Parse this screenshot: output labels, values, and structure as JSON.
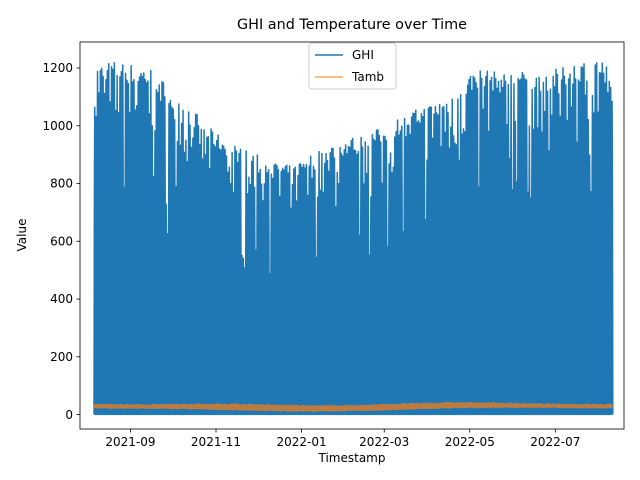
{
  "chart_data": {
    "type": "line",
    "title": "GHI and Temperature over Time",
    "xlabel": "Timestamp",
    "ylabel": "Value",
    "x_range": [
      "2021-08-06",
      "2022-08-10"
    ],
    "xlim": [
      "2021-07-27",
      "2022-08-19"
    ],
    "ylim": [
      -50,
      1290
    ],
    "x_ticks": [
      "2021-09",
      "2021-11",
      "2022-01",
      "2022-03",
      "2022-05",
      "2022-07"
    ],
    "y_ticks": [
      0,
      200,
      400,
      600,
      800,
      1000,
      1200
    ],
    "grid": false,
    "legend_position": "top-center",
    "series": [
      {
        "name": "GHI",
        "color": "#1f77b4",
        "daily_peak_envelope": {
          "x": [
            "2021-08-06",
            "2021-08-15",
            "2021-08-25",
            "2021-09-05",
            "2021-09-15",
            "2021-09-25",
            "2021-10-05",
            "2021-10-15",
            "2021-10-25",
            "2021-11-05",
            "2021-11-15",
            "2021-11-25",
            "2021-12-05",
            "2021-12-15",
            "2021-12-25",
            "2022-01-05",
            "2022-01-15",
            "2022-01-25",
            "2022-02-05",
            "2022-02-15",
            "2022-02-25",
            "2022-03-05",
            "2022-03-15",
            "2022-03-25",
            "2022-04-05",
            "2022-04-15",
            "2022-04-25",
            "2022-05-05",
            "2022-05-15",
            "2022-05-25",
            "2022-06-05",
            "2022-06-15",
            "2022-06-25",
            "2022-07-05",
            "2022-07-15",
            "2022-07-25",
            "2022-08-05",
            "2022-08-10"
          ],
          "y": [
            1220,
            1230,
            1220,
            1210,
            1200,
            1150,
            1080,
            1060,
            1000,
            960,
            930,
            910,
            890,
            870,
            860,
            900,
            920,
            940,
            960,
            970,
            990,
            1010,
            1040,
            1060,
            1080,
            1100,
            1150,
            1200,
            1190,
            1180,
            1190,
            1180,
            1190,
            1200,
            1220,
            1230,
            1225,
            1140
          ]
        },
        "daily_min": 0
      },
      {
        "name": "Tamb",
        "color": "#ff7f0e",
        "daily_range_envelope": {
          "x": [
            "2021-08-06",
            "2021-09-15",
            "2021-10-15",
            "2021-11-15",
            "2021-12-15",
            "2022-01-15",
            "2022-02-15",
            "2022-03-15",
            "2022-04-15",
            "2022-05-15",
            "2022-06-15",
            "2022-07-15",
            "2022-08-10"
          ],
          "low": [
            22,
            21,
            19,
            15,
            12,
            11,
            13,
            17,
            22,
            24,
            24,
            23,
            22
          ],
          "high": [
            36,
            35,
            37,
            37,
            33,
            31,
            33,
            38,
            42,
            41,
            38,
            36,
            35
          ]
        }
      }
    ]
  }
}
